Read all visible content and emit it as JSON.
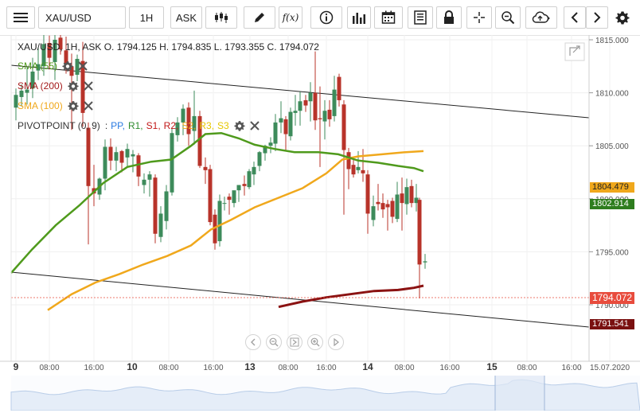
{
  "toolbar": {
    "symbol": "XAU/USD",
    "timeframe": "1H",
    "price_type": "ASK",
    "function_label": "f(x)"
  },
  "ohlc": "XAU/USD, 1H, ASK   O. 1794.125 H. 1794.835 L. 1793.355 C. 1794.072",
  "indicators": [
    {
      "label": "SMA (55)",
      "color": "#4f9a1c"
    },
    {
      "label": "SMA (200)",
      "color": "#a31919"
    },
    {
      "label": "SMA (100)",
      "color": "#f0a81c"
    }
  ],
  "pivot": {
    "label": "PIVOTPOINT (0, 9)",
    "sep": ":",
    "levels": [
      {
        "t": "PP,",
        "c": "#2a7ae2"
      },
      {
        "t": "R1,",
        "c": "#2e8b2e"
      },
      {
        "t": "S1,",
        "c": "#c21818"
      },
      {
        "t": "R2,",
        "c": "#c21818"
      },
      {
        "t": "S2,",
        "c": "#f0a81c"
      },
      {
        "t": "R3,",
        "c": "#e6c700"
      },
      {
        "t": "S3",
        "c": "#e6c700"
      }
    ]
  },
  "price_axis": [
    "1815.000",
    "1810.000",
    "1805.000",
    "1800.000",
    "1795.000",
    "1790.000"
  ],
  "price_tags": {
    "sma100": "1804.479",
    "sma55": "1802.914",
    "last": "1794.072",
    "sma200": "1791.541"
  },
  "time_axis": [
    {
      "t": "9",
      "bold": true
    },
    {
      "t": "08:00"
    },
    {
      "t": "16:00"
    },
    {
      "t": "10",
      "bold": true
    },
    {
      "t": "08:00"
    },
    {
      "t": "16:00"
    },
    {
      "t": "13",
      "bold": true
    },
    {
      "t": "08:00"
    },
    {
      "t": "16:00"
    },
    {
      "t": "14",
      "bold": true
    },
    {
      "t": "08:00"
    },
    {
      "t": "16:00"
    },
    {
      "t": "15",
      "bold": true
    },
    {
      "t": "08:00"
    },
    {
      "t": "16:00"
    },
    {
      "t": "15.07.2020"
    }
  ],
  "colors": {
    "up": "#3d8b5b",
    "down": "#b8332a",
    "sma55": "#4f9a1c",
    "sma100": "#f0a81c",
    "sma200": "#8b1212",
    "last_price": "#e84c3d"
  }
}
